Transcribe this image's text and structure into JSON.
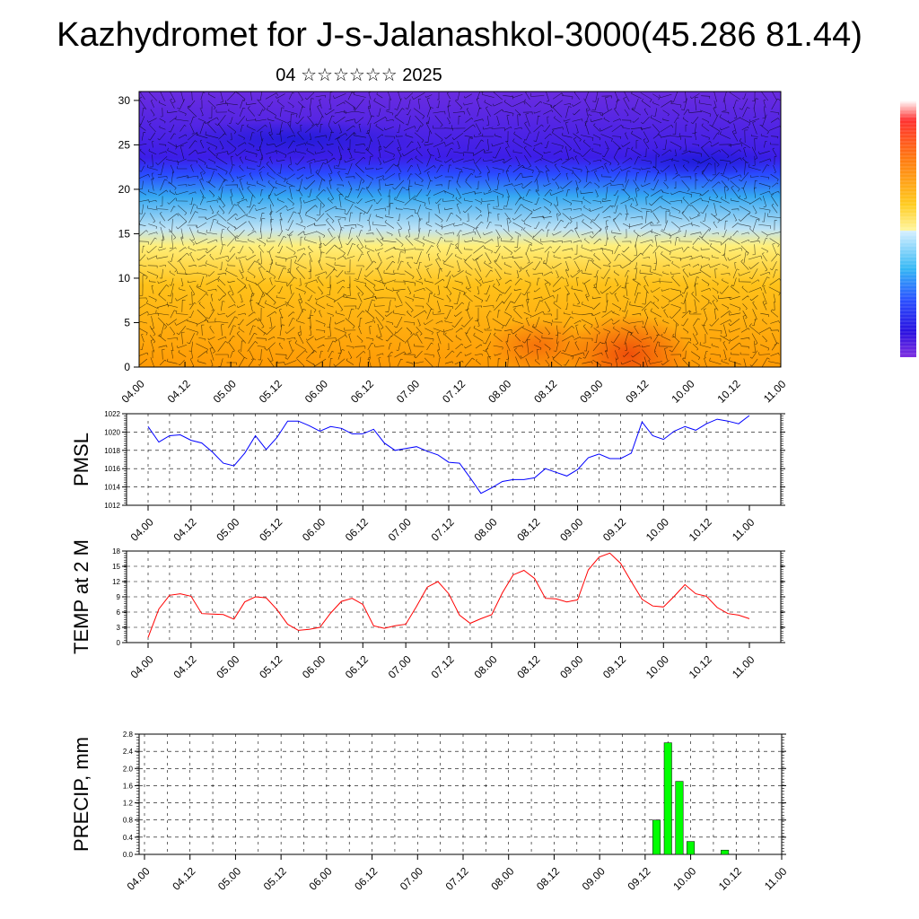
{
  "header": {
    "title": "Kazhydromet for J-s-Jalanashkol-3000(45.286 81.44)",
    "subtitle": "04 ☆☆☆☆☆☆ 2025"
  },
  "time_axis": [
    "04.00",
    "04.12",
    "05.00",
    "05.12",
    "06.00",
    "06.12",
    "07.00",
    "07.12",
    "08.00",
    "08.12",
    "09.00",
    "09.12",
    "10.00",
    "10.12",
    "11.00"
  ],
  "chart_data": [
    {
      "type": "heatmap",
      "panel": "cross-section",
      "yticks": [
        0,
        5,
        10,
        15,
        20,
        25,
        30
      ],
      "ylim": [
        0,
        31
      ],
      "colors": [
        "#6a2ce0",
        "#3c1ee8",
        "#2a4bff",
        "#35a8f2",
        "#bfe3f5",
        "#ffef7a",
        "#ffc21a",
        "#ff9a05",
        "#ef4b0a"
      ]
    },
    {
      "type": "line",
      "ylabel": "PMSL",
      "ylim": [
        1012,
        1022
      ],
      "yticks": [
        1012,
        1014,
        1016,
        1018,
        1020,
        1022
      ],
      "color": "#0000ff",
      "values": [
        1020.6,
        1018.9,
        1019.6,
        1019.7,
        1019.1,
        1018.8,
        1017.8,
        1016.6,
        1016.3,
        1017.7,
        1019.6,
        1018.1,
        1019.4,
        1021.2,
        1021.2,
        1020.7,
        1020.1,
        1020.6,
        1020.4,
        1019.8,
        1019.8,
        1020.3,
        1018.8,
        1018.0,
        1018.2,
        1018.4,
        1017.9,
        1017.5,
        1016.7,
        1016.6,
        1015.0,
        1013.3,
        1013.9,
        1014.6,
        1014.8,
        1014.8,
        1015.0,
        1016.0,
        1015.6,
        1015.2,
        1015.9,
        1017.2,
        1017.6,
        1017.1,
        1017.1,
        1017.7,
        1021.1,
        1019.6,
        1019.2,
        1020.1,
        1020.6,
        1020.2,
        1020.9,
        1021.4,
        1021.2,
        1020.9,
        1021.8
      ]
    },
    {
      "type": "line",
      "ylabel": "TEMP at 2 M",
      "ylim": [
        0,
        18
      ],
      "yticks": [
        0,
        3,
        6,
        9,
        12,
        15,
        18
      ],
      "color": "#ff0000",
      "values": [
        1.0,
        6.6,
        9.3,
        9.6,
        9.1,
        5.7,
        5.6,
        5.5,
        4.6,
        8.0,
        9.0,
        8.8,
        6.5,
        3.6,
        2.4,
        2.6,
        3.0,
        5.8,
        8.1,
        8.7,
        7.5,
        3.3,
        2.8,
        3.3,
        3.6,
        7.1,
        10.9,
        12.0,
        9.6,
        5.4,
        3.8,
        4.7,
        5.5,
        9.8,
        13.3,
        14.2,
        12.6,
        8.7,
        8.6,
        8.0,
        8.4,
        14.3,
        16.8,
        17.6,
        15.6,
        12.0,
        8.5,
        7.2,
        7.0,
        9.1,
        11.4,
        9.6,
        9.1,
        6.9,
        5.7,
        5.4,
        4.7
      ]
    },
    {
      "type": "bar",
      "ylabel": "PRECIP, mm",
      "ylim": [
        0,
        2.8
      ],
      "yticks": [
        "0.0",
        "0.4",
        "0.8",
        "1.2",
        "1.6",
        "2.0",
        "2.4",
        "2.8"
      ],
      "color": "#00ff00",
      "bars": [
        {
          "x": 9.625,
          "value": 0.8
        },
        {
          "x": 9.75,
          "value": 2.6
        },
        {
          "x": 9.875,
          "value": 1.7
        },
        {
          "x": 10.0,
          "value": 0.3
        },
        {
          "x": 10.375,
          "value": 0.1
        }
      ]
    }
  ]
}
